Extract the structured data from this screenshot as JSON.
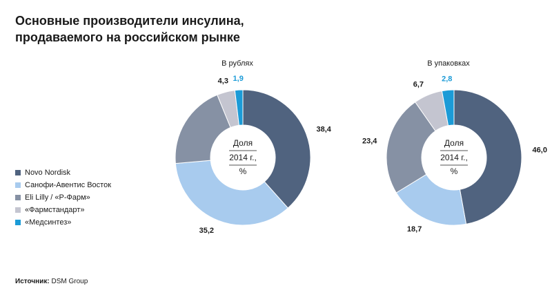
{
  "title": [
    "Основные производители инсулина,",
    "продаваемого на российском рынке"
  ],
  "center_text": [
    "Доля",
    "2014 г.,",
    "%"
  ],
  "source_label": "Источник:",
  "source": "DSM Group",
  "chart_data": [
    {
      "type": "donut",
      "title": "В рублях",
      "categories": [
        "Novo Nordisk",
        "Санофи-Авентис Восток",
        "Eli Lilly / «Р-Фарм»",
        "«Фармстандарт»",
        "«Медсинтез»"
      ],
      "colors": [
        "#50637f",
        "#a8cbee",
        "#8691a4",
        "#c4c5d0",
        "#1b9bd7"
      ],
      "values": [
        38.4,
        35.2,
        20.2,
        4.3,
        1.9
      ],
      "value_labels": [
        "38,4",
        "35,2",
        null,
        "4,3",
        "1,9"
      ]
    },
    {
      "type": "donut",
      "title": "В упаковках",
      "categories": [
        "Novo Nordisk",
        "Санофи-Авентис Восток",
        "Eli Lilly / «Р-Фарм»",
        "«Фармстандарт»",
        "«Медсинтез»"
      ],
      "colors": [
        "#50637f",
        "#a8cbee",
        "#8691a4",
        "#c4c5d0",
        "#1b9bd7"
      ],
      "values": [
        46.0,
        18.7,
        23.4,
        6.7,
        2.8
      ],
      "value_labels": [
        "46,0",
        "18,7",
        "23,4",
        "6,7",
        "2,8"
      ]
    }
  ]
}
